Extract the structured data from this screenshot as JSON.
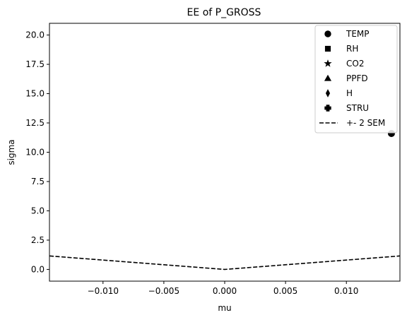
{
  "chart_data": {
    "type": "scatter",
    "title": "EE of P_GROSS",
    "xlabel": "mu",
    "ylabel": "sigma",
    "xlim": [
      -0.0144,
      0.0144
    ],
    "ylim": [
      -1.0,
      21.0
    ],
    "x_ticks": [
      -0.01,
      -0.005,
      0.0,
      0.005,
      0.01
    ],
    "x_tick_labels": [
      "−0.010",
      "−0.005",
      "0.000",
      "0.005",
      "0.010"
    ],
    "y_ticks": [
      0,
      2.5,
      5,
      7.5,
      10,
      12.5,
      15,
      17.5,
      20
    ],
    "y_tick_labels": [
      "0.0",
      "2.5",
      "5.0",
      "7.5",
      "10.0",
      "12.5",
      "15.0",
      "17.5",
      "20.0"
    ],
    "grid": false,
    "legend_position": "top-right",
    "series": [
      {
        "name": "TEMP",
        "marker": "circle",
        "color": "#000000",
        "points": [
          {
            "x": 0.0137,
            "y": 11.6
          }
        ]
      },
      {
        "name": "RH",
        "marker": "square",
        "color": "#000000",
        "points": []
      },
      {
        "name": "CO2",
        "marker": "star",
        "color": "#000000",
        "points": []
      },
      {
        "name": "PPFD",
        "marker": "triangle",
        "color": "#000000",
        "points": []
      },
      {
        "name": "H",
        "marker": "thin-diamond",
        "color": "#000000",
        "points": []
      },
      {
        "name": "STRU",
        "marker": "plus",
        "color": "#000000",
        "points": []
      }
    ],
    "sem_line": {
      "name": "+- 2 SEM",
      "style": "dashed",
      "color": "#000000",
      "points": [
        {
          "x": -0.0144,
          "y": 1.15
        },
        {
          "x": 0.0,
          "y": 0.0
        },
        {
          "x": 0.0144,
          "y": 1.15
        }
      ]
    }
  }
}
